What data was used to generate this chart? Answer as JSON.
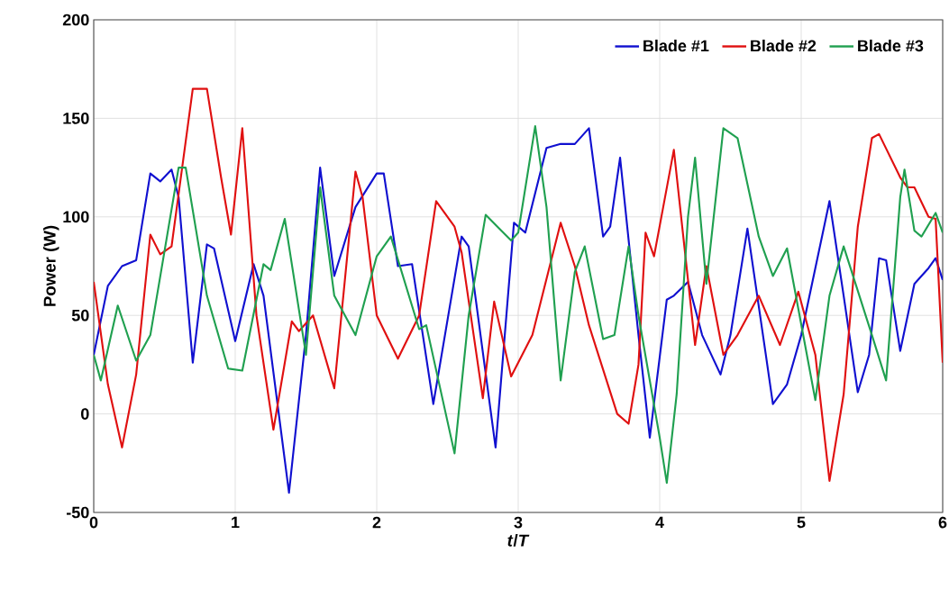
{
  "chart_data": {
    "type": "line",
    "xlabel": "*t*/*T*",
    "ylabel": "Power (W)",
    "xlim": [
      0,
      6
    ],
    "ylim": [
      -50,
      200
    ],
    "xticks": [
      0,
      1,
      2,
      3,
      4,
      5,
      6
    ],
    "yticks": [
      -50,
      0,
      50,
      100,
      150,
      200
    ],
    "grid": true,
    "legend": "top right",
    "marker": "none",
    "line_style": "solid",
    "series": [
      {
        "name": "Blade #1",
        "color": "#1010d0",
        "x": [
          0,
          0.1,
          0.2,
          0.3,
          0.4,
          0.47,
          0.55,
          0.6,
          0.7,
          0.8,
          0.85,
          1.0,
          1.13,
          1.2,
          1.38,
          1.5,
          1.6,
          1.7,
          1.85,
          2.0,
          2.05,
          2.15,
          2.25,
          2.4,
          2.6,
          2.65,
          2.84,
          2.97,
          3.05,
          3.2,
          3.3,
          3.4,
          3.5,
          3.6,
          3.65,
          3.72,
          3.85,
          3.93,
          4.05,
          4.1,
          4.2,
          4.3,
          4.43,
          4.5,
          4.62,
          4.75,
          4.8,
          4.9,
          5.0,
          5.2,
          5.3,
          5.4,
          5.48,
          5.55,
          5.6,
          5.7,
          5.8,
          5.9,
          5.95,
          6.0
        ],
        "values": [
          30,
          65,
          75,
          78,
          122,
          118,
          124,
          110,
          26,
          86,
          84,
          37,
          76,
          60,
          -40,
          40,
          125,
          70,
          105,
          122,
          122,
          75,
          76,
          5,
          90,
          85,
          -17,
          97,
          92,
          135,
          137,
          137,
          145,
          90,
          95,
          130,
          40,
          -12,
          58,
          60,
          67,
          40,
          20,
          40,
          94,
          30,
          5,
          15,
          40,
          108,
          60,
          11,
          30,
          79,
          78,
          32,
          66,
          74,
          79,
          68
        ]
      },
      {
        "name": "Blade #2",
        "color": "#e01010",
        "x": [
          0,
          0.1,
          0.2,
          0.3,
          0.4,
          0.47,
          0.55,
          0.7,
          0.8,
          0.9,
          0.97,
          1.05,
          1.15,
          1.27,
          1.4,
          1.45,
          1.55,
          1.7,
          1.85,
          1.9,
          2.0,
          2.15,
          2.3,
          2.42,
          2.55,
          2.6,
          2.75,
          2.83,
          2.95,
          3.1,
          3.3,
          3.4,
          3.5,
          3.7,
          3.78,
          3.85,
          3.9,
          3.96,
          4.1,
          4.25,
          4.33,
          4.45,
          4.55,
          4.7,
          4.85,
          4.98,
          5.1,
          5.2,
          5.3,
          5.4,
          5.5,
          5.55,
          5.7,
          5.75,
          5.8,
          5.9,
          5.95,
          6.0
        ],
        "values": [
          67,
          15,
          -17,
          20,
          91,
          81,
          85,
          165,
          165,
          120,
          91,
          145,
          50,
          -8,
          47,
          42,
          50,
          13,
          123,
          110,
          50,
          28,
          50,
          108,
          95,
          82,
          8,
          57,
          19,
          40,
          97,
          75,
          45,
          0,
          -5,
          25,
          92,
          80,
          134,
          35,
          75,
          30,
          40,
          60,
          35,
          62,
          30,
          -34,
          10,
          95,
          140,
          142,
          120,
          115,
          115,
          100,
          99,
          26
        ]
      },
      {
        "name": "Blade #3",
        "color": "#20a050",
        "x": [
          0,
          0.05,
          0.17,
          0.3,
          0.4,
          0.6,
          0.65,
          0.8,
          0.95,
          1.05,
          1.2,
          1.25,
          1.35,
          1.5,
          1.6,
          1.7,
          1.85,
          2.0,
          2.1,
          2.3,
          2.35,
          2.55,
          2.65,
          2.77,
          2.95,
          3.0,
          3.12,
          3.2,
          3.3,
          3.4,
          3.47,
          3.6,
          3.68,
          3.78,
          3.85,
          4.0,
          4.05,
          4.12,
          4.2,
          4.25,
          4.33,
          4.45,
          4.55,
          4.7,
          4.8,
          4.9,
          5.1,
          5.2,
          5.3,
          5.5,
          5.6,
          5.7,
          5.73,
          5.8,
          5.85,
          5.95,
          6.0
        ],
        "values": [
          30,
          17,
          55,
          27,
          40,
          125,
          125,
          60,
          23,
          22,
          76,
          73,
          99,
          30,
          115,
          60,
          40,
          80,
          90,
          43,
          45,
          -20,
          50,
          101,
          88,
          92,
          146,
          105,
          17,
          72,
          85,
          38,
          40,
          85,
          50,
          -12,
          -35,
          10,
          100,
          130,
          66,
          145,
          140,
          90,
          70,
          84,
          7,
          60,
          85,
          40,
          17,
          110,
          124,
          93,
          90,
          102,
          92
        ]
      }
    ]
  }
}
